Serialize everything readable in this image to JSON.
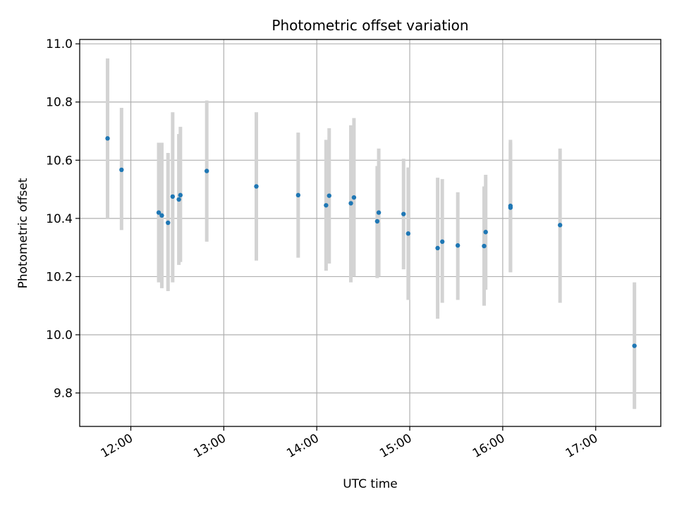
{
  "chart_data": {
    "type": "scatter",
    "title": "Photometric offset variation",
    "xlabel": "UTC time",
    "ylabel": "Photometric offset",
    "xlim": [
      "11:27",
      "17:42"
    ],
    "ylim": [
      9.685,
      11.015
    ],
    "x_ticks": [
      "12:00",
      "13:00",
      "14:00",
      "15:00",
      "16:00",
      "17:00"
    ],
    "y_ticks": [
      "9.8",
      "10.0",
      "10.2",
      "10.4",
      "10.6",
      "10.8",
      "11.0"
    ],
    "grid": true,
    "errorbar_color": "#d3d3d3",
    "point_color": "#1f77b4",
    "points": [
      {
        "x": "11:45",
        "y": 10.675,
        "ylo": 10.4,
        "yhi": 10.95
      },
      {
        "x": "11:54",
        "y": 10.567,
        "ylo": 10.36,
        "yhi": 10.78
      },
      {
        "x": "12:18",
        "y": 10.42,
        "ylo": 10.18,
        "yhi": 10.66
      },
      {
        "x": "12:20",
        "y": 10.41,
        "ylo": 10.16,
        "yhi": 10.66
      },
      {
        "x": "12:24",
        "y": 10.385,
        "ylo": 10.15,
        "yhi": 10.625
      },
      {
        "x": "12:27",
        "y": 10.475,
        "ylo": 10.18,
        "yhi": 10.765
      },
      {
        "x": "12:31",
        "y": 10.465,
        "ylo": 10.24,
        "yhi": 10.69
      },
      {
        "x": "12:32",
        "y": 10.48,
        "ylo": 10.25,
        "yhi": 10.715
      },
      {
        "x": "12:49",
        "y": 10.563,
        "ylo": 10.32,
        "yhi": 10.805
      },
      {
        "x": "13:21",
        "y": 10.51,
        "ylo": 10.255,
        "yhi": 10.765
      },
      {
        "x": "13:48",
        "y": 10.48,
        "ylo": 10.265,
        "yhi": 10.695
      },
      {
        "x": "14:06",
        "y": 10.445,
        "ylo": 10.22,
        "yhi": 10.67
      },
      {
        "x": "14:08",
        "y": 10.478,
        "ylo": 10.245,
        "yhi": 10.71
      },
      {
        "x": "14:22",
        "y": 10.452,
        "ylo": 10.18,
        "yhi": 10.72
      },
      {
        "x": "14:24",
        "y": 10.472,
        "ylo": 10.2,
        "yhi": 10.745
      },
      {
        "x": "14:39",
        "y": 10.39,
        "ylo": 10.195,
        "yhi": 10.58
      },
      {
        "x": "14:40",
        "y": 10.42,
        "ylo": 10.2,
        "yhi": 10.64
      },
      {
        "x": "14:56",
        "y": 10.415,
        "ylo": 10.225,
        "yhi": 10.605
      },
      {
        "x": "14:59",
        "y": 10.348,
        "ylo": 10.12,
        "yhi": 10.575
      },
      {
        "x": "15:18",
        "y": 10.298,
        "ylo": 10.055,
        "yhi": 10.54
      },
      {
        "x": "15:21",
        "y": 10.32,
        "ylo": 10.11,
        "yhi": 10.535
      },
      {
        "x": "15:31",
        "y": 10.307,
        "ylo": 10.12,
        "yhi": 10.49
      },
      {
        "x": "15:48",
        "y": 10.305,
        "ylo": 10.1,
        "yhi": 10.51
      },
      {
        "x": "15:49",
        "y": 10.353,
        "ylo": 10.155,
        "yhi": 10.55
      },
      {
        "x": "16:05",
        "y": 10.443,
        "ylo": 10.215,
        "yhi": 10.67
      },
      {
        "x": "16:05",
        "y": 10.437,
        "ylo": 10.215,
        "yhi": 10.66
      },
      {
        "x": "16:37",
        "y": 10.377,
        "ylo": 10.11,
        "yhi": 10.64
      },
      {
        "x": "17:25",
        "y": 9.962,
        "ylo": 9.745,
        "yhi": 10.18
      }
    ]
  }
}
